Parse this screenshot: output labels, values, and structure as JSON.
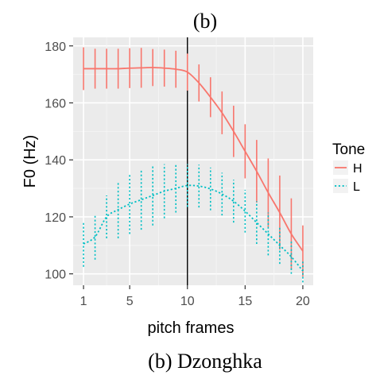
{
  "figure": {
    "top_label": "(b)",
    "caption": "(b) Dzonghka"
  },
  "chart_data": {
    "type": "line",
    "title": "",
    "xlabel": "pitch frames",
    "ylabel": "F0 (Hz)",
    "xlim": [
      0.1,
      20.9
    ],
    "ylim": [
      96,
      183
    ],
    "x_ticks": [
      1,
      5,
      10,
      15,
      20
    ],
    "y_ticks": [
      100,
      120,
      140,
      160,
      180
    ],
    "grid": true,
    "vertical_line_x": 10,
    "legend": {
      "title": "Tone",
      "position": "right",
      "entries": [
        {
          "label": "H",
          "color": "#F8766D",
          "dash": "solid"
        },
        {
          "label": "L",
          "color": "#00BFC4",
          "dash": "dotted"
        }
      ]
    },
    "x": [
      1,
      2,
      3,
      4,
      5,
      6,
      7,
      8,
      9,
      10,
      11,
      12,
      13,
      14,
      15,
      16,
      17,
      18,
      19,
      20
    ],
    "series": [
      {
        "name": "H",
        "color": "#F8766D",
        "dash": "solid",
        "values": [
          172,
          172,
          172,
          172,
          172.2,
          172.3,
          172.4,
          172.2,
          171.8,
          170.8,
          167,
          162,
          156.5,
          150,
          143,
          136,
          128.5,
          121.5,
          114,
          108
        ],
        "error": [
          7.5,
          7,
          7,
          7,
          7,
          7,
          6.5,
          6.5,
          6.5,
          6.5,
          6.5,
          7,
          7.5,
          9,
          9.5,
          11,
          12,
          13,
          12.5,
          9
        ]
      },
      {
        "name": "L",
        "color": "#00BFC4",
        "dash": "dotted",
        "values": [
          110.5,
          113,
          120,
          122.5,
          124.5,
          126,
          127.5,
          129,
          130,
          131,
          130.8,
          129.8,
          128,
          125.5,
          122,
          118,
          114,
          110,
          106,
          101
        ],
        "error": [
          8,
          8,
          7.5,
          10,
          10.5,
          10.5,
          10.5,
          9.5,
          8.5,
          7.5,
          7.5,
          7.5,
          7.5,
          7.5,
          7.5,
          7.5,
          7.5,
          6.5,
          6,
          4
        ]
      }
    ]
  }
}
